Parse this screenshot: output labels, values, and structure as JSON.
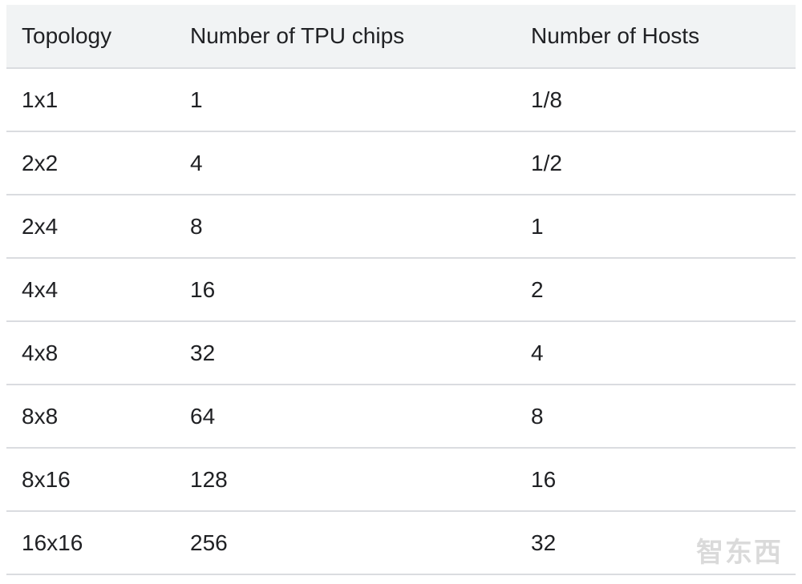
{
  "table": {
    "header": [
      "Topology",
      "Number of TPU chips",
      "Number of Hosts"
    ],
    "rows": [
      [
        "1x1",
        "1",
        "1/8"
      ],
      [
        "2x2",
        "4",
        "1/2"
      ],
      [
        "2x4",
        "8",
        "1"
      ],
      [
        "4x4",
        "16",
        "2"
      ],
      [
        "4x8",
        "32",
        "4"
      ],
      [
        "8x8",
        "64",
        "8"
      ],
      [
        "8x16",
        "128",
        "16"
      ],
      [
        "16x16",
        "256",
        "32"
      ]
    ]
  },
  "watermark": "智东西"
}
